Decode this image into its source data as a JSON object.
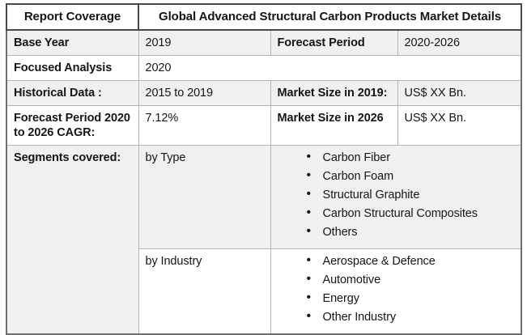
{
  "table": {
    "header": {
      "coverage_label": "Report Coverage",
      "title": "Global Advanced Structural Carbon Products Market Details"
    },
    "base_year": {
      "label": "Base Year",
      "value": "2019"
    },
    "forecast_period": {
      "label": "Forecast Period",
      "value": "2020-2026"
    },
    "focused_analysis": {
      "label": "Focused Analysis",
      "value": "2020"
    },
    "historical_data": {
      "label": "Historical Data :",
      "value": "2015 to 2019"
    },
    "market_size_2019": {
      "label": "Market Size in 2019:",
      "value": "US$ XX Bn."
    },
    "cagr": {
      "label": "Forecast Period 2020 to 2026 CAGR:",
      "value": "7.12%"
    },
    "market_size_2026": {
      "label": "Market Size in 2026",
      "value": "US$ XX Bn."
    },
    "segments": {
      "label": "Segments covered:",
      "by_type": {
        "label": "by Type",
        "items": [
          "Carbon Fiber",
          "Carbon Foam",
          "Structural Graphite",
          "Carbon Structural Composites",
          "Others"
        ]
      },
      "by_industry": {
        "label": "by Industry",
        "items": [
          "Aerospace & Defence",
          "Automotive",
          "Energy",
          "Other Industry"
        ]
      }
    },
    "colors": {
      "row_shade": "#f0f0f0",
      "border_inner": "#b5b5b5",
      "border_outer": "#6e6e6e",
      "header_border": "#484848",
      "text": "#161616"
    }
  }
}
